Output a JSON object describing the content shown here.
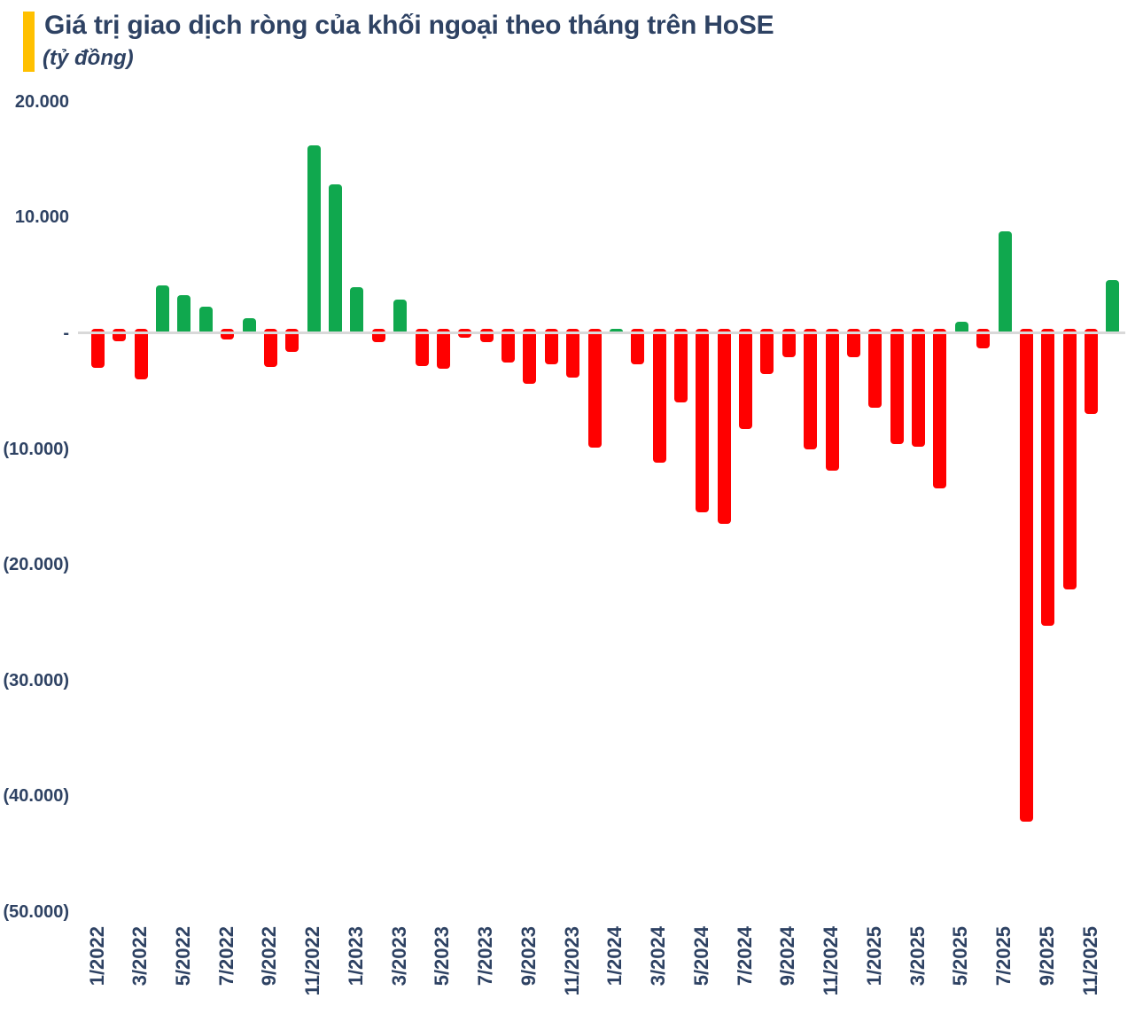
{
  "header": {
    "title": "Giá trị giao dịch ròng của khối ngoại theo tháng trên HoSE",
    "subtitle": "(tỷ đồng)",
    "accent_color": "#FFC000",
    "text_color": "#2e4263"
  },
  "chart_data": {
    "type": "bar",
    "title": "Giá trị giao dịch ròng của khối ngoại theo tháng trên HoSE",
    "unit": "tỷ đồng",
    "x": [
      "1/2022",
      "2/2022",
      "3/2022",
      "4/2022",
      "5/2022",
      "6/2022",
      "7/2022",
      "8/2022",
      "9/2022",
      "10/2022",
      "11/2022",
      "12/2022",
      "1/2023",
      "2/2023",
      "3/2023",
      "4/2023",
      "5/2023",
      "6/2023",
      "7/2023",
      "8/2023",
      "9/2023",
      "10/2023",
      "11/2023",
      "12/2023",
      "1/2024",
      "2/2024",
      "3/2024",
      "4/2024",
      "5/2024",
      "6/2024",
      "7/2024",
      "8/2024",
      "9/2024",
      "10/2024",
      "11/2024",
      "12/2024",
      "1/2025",
      "2/2025",
      "3/2025",
      "4/2025",
      "5/2025",
      "6/2025",
      "7/2025",
      "8/2025",
      "9/2025",
      "10/2025",
      "11/2025",
      "12/2025"
    ],
    "values": [
      -3000,
      -700,
      -4000,
      4100,
      3300,
      2300,
      -500,
      1300,
      -2900,
      -1600,
      16200,
      12900,
      4000,
      -800,
      2900,
      -2800,
      -3100,
      -400,
      -800,
      -2500,
      -4400,
      -2700,
      -3800,
      -9900,
      400,
      -2700,
      -11200,
      -6000,
      -15500,
      -16500,
      -8300,
      -3500,
      -2100,
      -10000,
      -11900,
      -2100,
      -6400,
      -9600,
      -9800,
      -13400,
      1000,
      -1300,
      8800,
      -42200,
      -25300,
      -22100,
      -7000,
      4600
    ],
    "xtick_labels": [
      "1/2022",
      "3/2022",
      "5/2022",
      "7/2022",
      "9/2022",
      "11/2022",
      "1/2023",
      "3/2023",
      "5/2023",
      "7/2023",
      "9/2023",
      "11/2023",
      "1/2024",
      "3/2024",
      "5/2024",
      "7/2024",
      "9/2024",
      "11/2024",
      "1/2025",
      "3/2025",
      "5/2025",
      "7/2025",
      "9/2025",
      "11/2025"
    ],
    "xtick_every": 2,
    "yticks": [
      {
        "value": 20000,
        "label": "20.000"
      },
      {
        "value": 10000,
        "label": "10.000"
      },
      {
        "value": 0,
        "label": "-"
      },
      {
        "value": -10000,
        "label": "(10.000)"
      },
      {
        "value": -20000,
        "label": "(20.000)"
      },
      {
        "value": -30000,
        "label": "(30.000)"
      },
      {
        "value": -40000,
        "label": "(40.000)"
      },
      {
        "value": -50000,
        "label": "(50.000)"
      }
    ],
    "ylim": [
      -50000,
      20000
    ],
    "grid": false,
    "legend": null,
    "positive_color": "#10a84e",
    "negative_color": "#ff0000",
    "axis_line_color": "#d9d9d9",
    "label_color": "#2e4263"
  }
}
